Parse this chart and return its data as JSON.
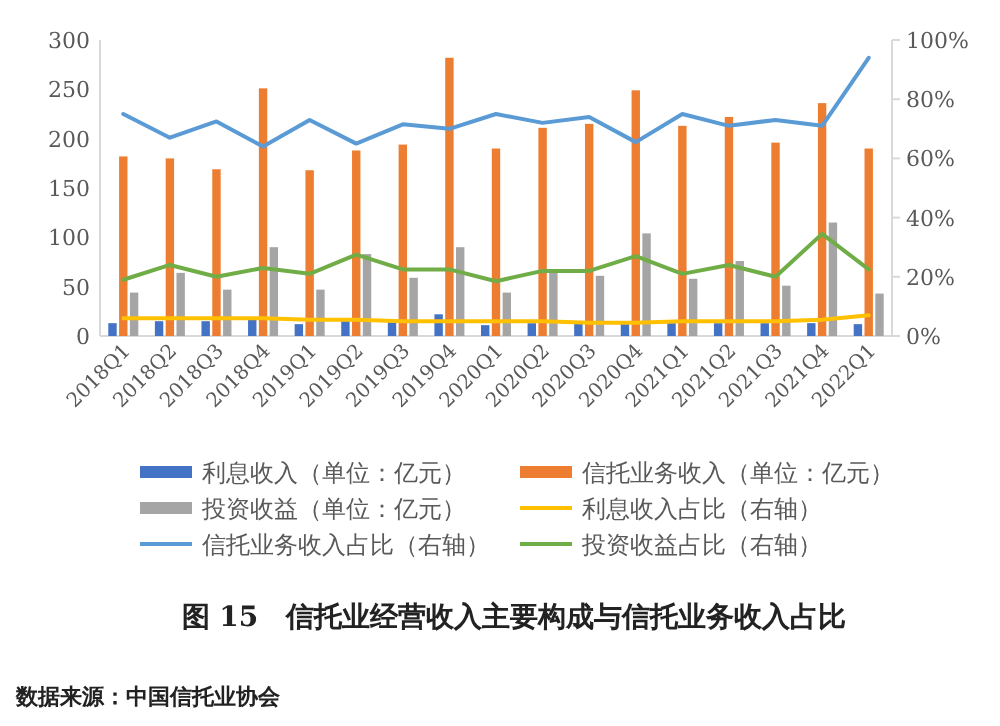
{
  "chart_data": {
    "type": "bar",
    "title": "图 15　信托业经营收入主要构成与信托业务收入占比",
    "categories": [
      "2018Q1",
      "2018Q2",
      "2018Q3",
      "2018Q4",
      "2019Q1",
      "2019Q2",
      "2019Q3",
      "2019Q4",
      "2020Q1",
      "2020Q2",
      "2020Q3",
      "2020Q4",
      "2021Q1",
      "2021Q2",
      "2021Q3",
      "2021Q4",
      "2022Q1"
    ],
    "series": [
      {
        "name": "利息收入（单位：亿元）",
        "color": "#4472c4",
        "values": [
          13,
          15,
          15,
          17,
          12,
          15,
          14,
          22,
          11,
          13,
          13,
          13,
          13,
          13,
          13,
          13,
          12
        ]
      },
      {
        "name": "信托业务收入（单位：亿元）",
        "color": "#ed7d31",
        "values": [
          182,
          180,
          169,
          251,
          168,
          188,
          194,
          282,
          190,
          211,
          215,
          249,
          213,
          222,
          196,
          236,
          190
        ]
      },
      {
        "name": "投资收益（单位：亿元）",
        "color": "#a5a5a5",
        "values": [
          44,
          64,
          47,
          90,
          47,
          83,
          59,
          90,
          44,
          64,
          61,
          104,
          58,
          76,
          51,
          115,
          43
        ]
      },
      {
        "name": "利息收入占比（右轴）",
        "type": "line",
        "axis": "y2",
        "color": "#ffc000",
        "values": [
          6,
          6,
          6,
          6,
          5.5,
          5.5,
          5,
          5,
          5,
          5,
          4.5,
          4.5,
          5,
          5,
          5,
          5.5,
          7
        ]
      },
      {
        "name": "信托业务收入占比（右轴）",
        "type": "line",
        "axis": "y2",
        "color": "#5b9bd5",
        "values": [
          75,
          67,
          72.5,
          64,
          73,
          65,
          71.5,
          70,
          75,
          72,
          74,
          65.5,
          75,
          71,
          73,
          71,
          94
        ]
      },
      {
        "name": "投资收益占比（右轴）",
        "type": "line",
        "axis": "y2",
        "color": "#70ad47",
        "values": [
          19,
          24,
          20,
          23,
          21,
          27.5,
          22.5,
          22.5,
          18.5,
          22,
          22,
          27,
          21,
          24,
          20,
          34.5,
          22.5
        ]
      }
    ],
    "ylim": [
      0,
      300
    ],
    "yticks": [
      0,
      50,
      100,
      150,
      200,
      250,
      300
    ],
    "y2lim": [
      0,
      100
    ],
    "y2ticks": [
      {
        "value": 0,
        "label": "0%"
      },
      {
        "value": 20,
        "label": "20%"
      },
      {
        "value": 40,
        "label": "40%"
      },
      {
        "value": 60,
        "label": "60%"
      },
      {
        "value": 80,
        "label": "80%"
      },
      {
        "value": 100,
        "label": "100%"
      }
    ],
    "legend": "bottom",
    "annotations": [
      "数据来源：中国信托业协会"
    ]
  }
}
